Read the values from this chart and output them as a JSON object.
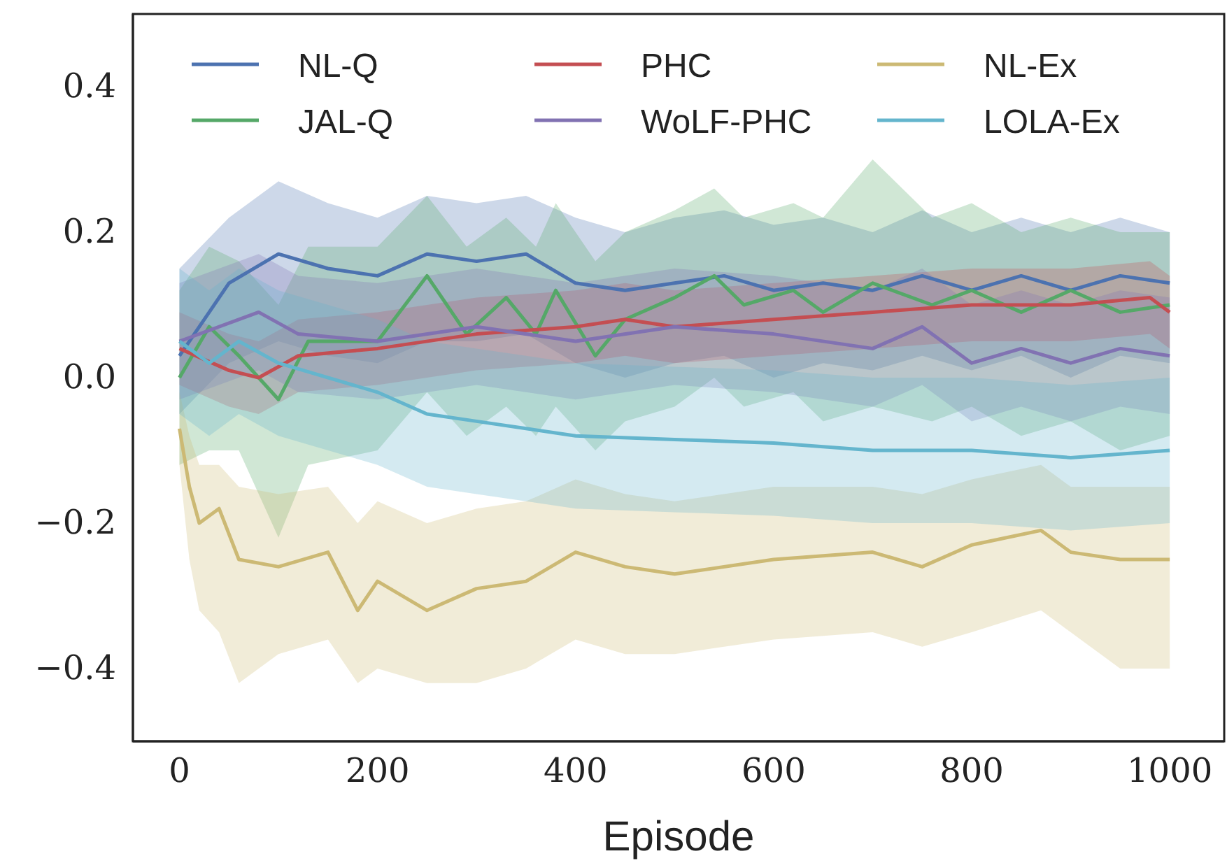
{
  "chart_data": {
    "type": "line",
    "xlabel": "Episode",
    "xlim": [
      -47,
      1055
    ],
    "ylim": [
      -0.5,
      0.5
    ],
    "xticks": [
      0,
      200,
      400,
      600,
      800,
      1000
    ],
    "yticks": [
      {
        "value": -0.4,
        "label": "−0.4"
      },
      {
        "value": -0.2,
        "label": "−0.2"
      },
      {
        "value": 0,
        "label": "0.0"
      },
      0.2,
      0.4
    ],
    "grid": false,
    "legend": "top",
    "marker": "none",
    "line_style": "solid",
    "series": [
      {
        "name": "NL-Q",
        "color": "#4c72b0",
        "x": [
          0,
          50,
          100,
          150,
          200,
          250,
          300,
          350,
          400,
          450,
          500,
          550,
          600,
          650,
          700,
          750,
          800,
          850,
          900,
          950,
          1000
        ],
        "values": [
          0.03,
          0.13,
          0.17,
          0.15,
          0.14,
          0.17,
          0.16,
          0.17,
          0.13,
          0.12,
          0.13,
          0.14,
          0.12,
          0.13,
          0.12,
          0.14,
          0.12,
          0.14,
          0.12,
          0.14,
          0.13
        ],
        "upper": [
          0.15,
          0.22,
          0.27,
          0.24,
          0.22,
          0.25,
          0.24,
          0.25,
          0.22,
          0.2,
          0.22,
          0.23,
          0.21,
          0.22,
          0.2,
          0.23,
          0.2,
          0.22,
          0.2,
          0.22,
          0.2
        ],
        "lower": [
          -0.05,
          0.02,
          0.05,
          0.03,
          0.02,
          0.05,
          0.05,
          0.06,
          0.02,
          0.0,
          0.02,
          0.03,
          0.0,
          0.02,
          0.01,
          0.03,
          0.01,
          0.03,
          0.0,
          0.03,
          0.02
        ]
      },
      {
        "name": "JAL-Q",
        "color": "#55a868",
        "x": [
          0,
          30,
          60,
          100,
          130,
          200,
          250,
          290,
          330,
          360,
          380,
          420,
          450,
          500,
          540,
          570,
          620,
          650,
          700,
          760,
          800,
          850,
          900,
          950,
          1000
        ],
        "values": [
          0.0,
          0.07,
          0.03,
          -0.03,
          0.05,
          0.05,
          0.14,
          0.06,
          0.11,
          0.06,
          0.12,
          0.03,
          0.08,
          0.11,
          0.14,
          0.1,
          0.12,
          0.09,
          0.13,
          0.1,
          0.12,
          0.09,
          0.12,
          0.09,
          0.1
        ],
        "upper": [
          0.12,
          0.18,
          0.16,
          0.1,
          0.18,
          0.18,
          0.25,
          0.18,
          0.22,
          0.18,
          0.24,
          0.16,
          0.2,
          0.23,
          0.26,
          0.22,
          0.24,
          0.22,
          0.3,
          0.22,
          0.24,
          0.2,
          0.22,
          0.2,
          0.2
        ],
        "lower": [
          -0.12,
          -0.1,
          -0.1,
          -0.22,
          -0.12,
          -0.1,
          -0.02,
          -0.08,
          -0.04,
          -0.08,
          -0.04,
          -0.1,
          -0.06,
          -0.04,
          0.0,
          -0.04,
          -0.02,
          -0.06,
          -0.04,
          -0.06,
          -0.04,
          -0.08,
          -0.06,
          -0.1,
          -0.08
        ]
      },
      {
        "name": "PHC",
        "color": "#c44e52",
        "x": [
          0,
          50,
          80,
          120,
          200,
          300,
          400,
          450,
          500,
          600,
          700,
          800,
          900,
          980,
          1000
        ],
        "values": [
          0.04,
          0.01,
          0.0,
          0.03,
          0.04,
          0.06,
          0.07,
          0.08,
          0.07,
          0.08,
          0.09,
          0.1,
          0.1,
          0.11,
          0.09
        ],
        "upper": [
          0.09,
          0.06,
          0.05,
          0.08,
          0.09,
          0.11,
          0.12,
          0.13,
          0.12,
          0.13,
          0.14,
          0.15,
          0.15,
          0.16,
          0.14
        ],
        "lower": [
          -0.01,
          -0.04,
          -0.05,
          -0.02,
          -0.01,
          0.01,
          0.02,
          0.03,
          0.02,
          0.03,
          0.04,
          0.05,
          0.05,
          0.06,
          0.04
        ]
      },
      {
        "name": "WoLF-PHC",
        "color": "#8172b2",
        "x": [
          0,
          80,
          120,
          200,
          300,
          400,
          500,
          600,
          700,
          750,
          800,
          850,
          900,
          950,
          1000
        ],
        "values": [
          0.05,
          0.09,
          0.06,
          0.05,
          0.07,
          0.05,
          0.07,
          0.06,
          0.04,
          0.07,
          0.02,
          0.04,
          0.02,
          0.04,
          0.03
        ],
        "upper": [
          0.13,
          0.17,
          0.14,
          0.13,
          0.15,
          0.13,
          0.15,
          0.14,
          0.12,
          0.15,
          0.1,
          0.12,
          0.1,
          0.12,
          0.11
        ],
        "lower": [
          -0.03,
          0.01,
          -0.02,
          -0.03,
          -0.01,
          -0.03,
          -0.01,
          -0.02,
          -0.04,
          -0.01,
          -0.06,
          -0.04,
          -0.06,
          -0.04,
          -0.05
        ]
      },
      {
        "name": "NL-Ex",
        "color": "#ccb974",
        "x": [
          0,
          10,
          20,
          40,
          60,
          100,
          150,
          180,
          200,
          250,
          300,
          350,
          400,
          450,
          500,
          600,
          700,
          750,
          800,
          870,
          900,
          950,
          1000
        ],
        "values": [
          -0.07,
          -0.15,
          -0.2,
          -0.18,
          -0.25,
          -0.26,
          -0.24,
          -0.32,
          -0.28,
          -0.32,
          -0.29,
          -0.28,
          -0.24,
          -0.26,
          -0.27,
          -0.25,
          -0.24,
          -0.26,
          -0.23,
          -0.21,
          -0.24,
          -0.25,
          -0.25
        ],
        "upper": [
          -0.02,
          -0.08,
          -0.12,
          -0.12,
          -0.15,
          -0.16,
          -0.15,
          -0.2,
          -0.17,
          -0.2,
          -0.18,
          -0.17,
          -0.14,
          -0.16,
          -0.17,
          -0.15,
          -0.15,
          -0.16,
          -0.14,
          -0.12,
          -0.15,
          -0.15,
          -0.15
        ],
        "lower": [
          -0.12,
          -0.25,
          -0.32,
          -0.35,
          -0.42,
          -0.38,
          -0.36,
          -0.42,
          -0.4,
          -0.42,
          -0.42,
          -0.4,
          -0.36,
          -0.38,
          -0.38,
          -0.36,
          -0.35,
          -0.37,
          -0.35,
          -0.32,
          -0.35,
          -0.4,
          -0.4
        ]
      },
      {
        "name": "LOLA-Ex",
        "color": "#64b5cd",
        "x": [
          0,
          30,
          60,
          100,
          200,
          250,
          300,
          350,
          400,
          500,
          600,
          700,
          800,
          900,
          1000
        ],
        "values": [
          0.05,
          0.02,
          0.05,
          0.02,
          -0.02,
          -0.05,
          -0.06,
          -0.07,
          -0.08,
          -0.085,
          -0.09,
          -0.1,
          -0.1,
          -0.11,
          -0.1
        ],
        "upper": [
          0.15,
          0.12,
          0.15,
          0.12,
          0.08,
          0.05,
          0.04,
          0.03,
          0.02,
          0.015,
          0.01,
          0.0,
          0.0,
          -0.01,
          0.0
        ],
        "lower": [
          -0.05,
          -0.08,
          -0.05,
          -0.08,
          -0.12,
          -0.15,
          -0.16,
          -0.17,
          -0.18,
          -0.185,
          -0.19,
          -0.2,
          -0.2,
          -0.21,
          -0.2
        ]
      }
    ]
  }
}
